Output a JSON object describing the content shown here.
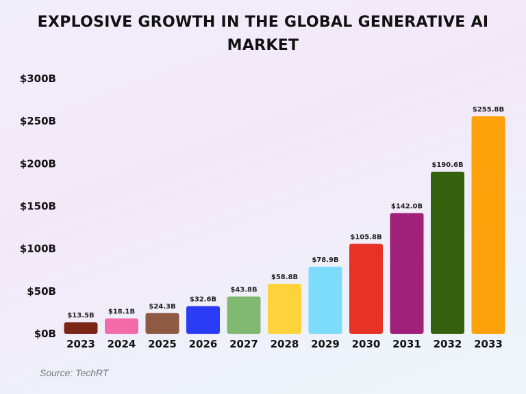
{
  "chart_data": {
    "type": "bar",
    "title": "EXPLOSIVE GROWTH IN THE GLOBAL GENERATIVE AI MARKET",
    "categories": [
      "2023",
      "2024",
      "2025",
      "2026",
      "2027",
      "2028",
      "2029",
      "2030",
      "2031",
      "2032",
      "2033"
    ],
    "values": [
      13.5,
      18.1,
      24.3,
      32.6,
      43.8,
      58.8,
      78.9,
      105.8,
      142.0,
      190.6,
      255.8
    ],
    "data_labels": [
      "$13.5B",
      "$18.1B",
      "$24.3B",
      "$32.6B",
      "$43.8B",
      "$58.8B",
      "$78.9B",
      "$105.8B",
      "$142.0B",
      "$190.6B",
      "$255.8B"
    ],
    "colors": [
      "#7a2515",
      "#f26aa8",
      "#8f5a43",
      "#2a3cf5",
      "#80b870",
      "#fdd23a",
      "#7ddcfc",
      "#e83225",
      "#a0207a",
      "#35610f",
      "#fda20a"
    ],
    "yticks": [
      0,
      50,
      100,
      150,
      200,
      250,
      300
    ],
    "ytick_labels": [
      "$0B",
      "$50B",
      "$100B",
      "$150B",
      "$200B",
      "$250B",
      "$300B"
    ],
    "ylim": [
      0,
      300
    ],
    "xlabel": "",
    "ylabel": "",
    "grid": false,
    "source": "Source: TechRT"
  }
}
